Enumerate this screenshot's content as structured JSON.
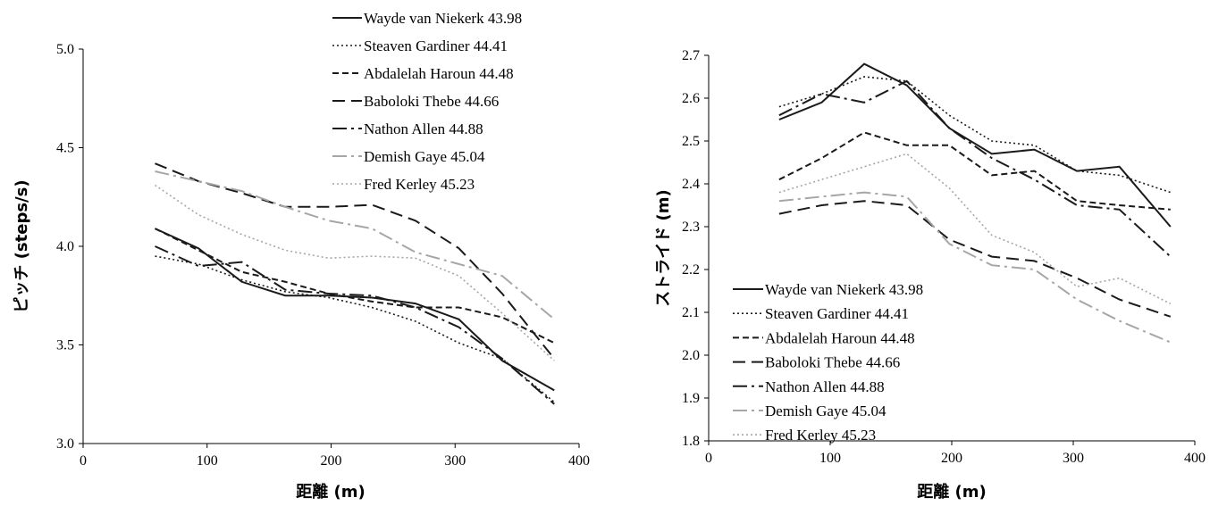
{
  "chart_data": [
    {
      "type": "line",
      "xlabel": "距離 (m)",
      "ylabel": "ピッチ (steps/s)",
      "xlim": [
        0,
        400
      ],
      "ylim": [
        3.0,
        5.0
      ],
      "xticks": [
        "0",
        "100",
        "200",
        "300",
        "400"
      ],
      "yticks": [
        "3.0",
        "3.5",
        "4.0",
        "4.5",
        "5.0"
      ],
      "grid": false,
      "legend_position": "top-right",
      "x": [
        58,
        93,
        128,
        163,
        198,
        233,
        268,
        303,
        338,
        380
      ],
      "series": [
        {
          "name": "Wayde van Niekerk 43.98",
          "style": "solid",
          "color": "#1a1a1a",
          "values": [
            4.09,
            3.99,
            3.82,
            3.75,
            3.75,
            3.74,
            3.71,
            3.63,
            3.42,
            3.27
          ]
        },
        {
          "name": "Steaven Gardiner 44.41",
          "style": "dotted",
          "color": "#1a1a1a",
          "values": [
            3.95,
            3.91,
            3.83,
            3.77,
            3.74,
            3.69,
            3.62,
            3.51,
            3.43,
            3.21
          ]
        },
        {
          "name": "Abdalelah Haroun 44.48",
          "style": "dashed",
          "color": "#1a1a1a",
          "values": [
            4.09,
            3.98,
            3.87,
            3.82,
            3.76,
            3.72,
            3.69,
            3.69,
            3.64,
            3.51
          ]
        },
        {
          "name": "Baboloki Thebe 44.66",
          "style": "longdash",
          "color": "#1a1a1a",
          "values": [
            4.42,
            4.33,
            4.27,
            4.2,
            4.2,
            4.21,
            4.13,
            3.99,
            3.76,
            3.43
          ]
        },
        {
          "name": "Nathon Allen 44.88",
          "style": "dashdot",
          "color": "#1a1a1a",
          "values": [
            4.0,
            3.9,
            3.92,
            3.78,
            3.76,
            3.75,
            3.69,
            3.59,
            3.43,
            3.2
          ]
        },
        {
          "name": "Demish Gaye 45.04",
          "style": "dashdot",
          "color": "#a6a6a6",
          "values": [
            4.38,
            4.33,
            4.28,
            4.2,
            4.13,
            4.09,
            3.97,
            3.91,
            3.85,
            3.63
          ]
        },
        {
          "name": "Fred Kerley 45.23",
          "style": "dotted",
          "color": "#a6a6a6",
          "values": [
            4.31,
            4.16,
            4.06,
            3.98,
            3.94,
            3.95,
            3.94,
            3.85,
            3.66,
            3.42
          ]
        }
      ]
    },
    {
      "type": "line",
      "xlabel": "距離 (m)",
      "ylabel": "ストライド (m)",
      "xlim": [
        0,
        400
      ],
      "ylim": [
        1.8,
        2.7
      ],
      "xticks": [
        "0",
        "100",
        "200",
        "300",
        "400"
      ],
      "yticks": [
        "1.8",
        "1.9",
        "2.0",
        "2.1",
        "2.2",
        "2.3",
        "2.4",
        "2.5",
        "2.6",
        "2.7"
      ],
      "grid": false,
      "legend_position": "bottom-left",
      "x": [
        58,
        93,
        128,
        163,
        198,
        233,
        268,
        303,
        338,
        380
      ],
      "series": [
        {
          "name": "Wayde van Niekerk 43.98",
          "style": "solid",
          "color": "#1a1a1a",
          "values": [
            2.55,
            2.59,
            2.68,
            2.63,
            2.53,
            2.47,
            2.48,
            2.43,
            2.44,
            2.3
          ]
        },
        {
          "name": "Steaven Gardiner 44.41",
          "style": "dotted",
          "color": "#1a1a1a",
          "values": [
            2.58,
            2.61,
            2.65,
            2.64,
            2.56,
            2.5,
            2.49,
            2.43,
            2.42,
            2.38
          ]
        },
        {
          "name": "Abdalelah Haroun 44.48",
          "style": "dashed",
          "color": "#1a1a1a",
          "values": [
            2.41,
            2.46,
            2.52,
            2.49,
            2.49,
            2.42,
            2.43,
            2.36,
            2.35,
            2.34
          ]
        },
        {
          "name": "Baboloki Thebe 44.66",
          "style": "longdash",
          "color": "#1a1a1a",
          "values": [
            2.33,
            2.35,
            2.36,
            2.35,
            2.27,
            2.23,
            2.22,
            2.18,
            2.13,
            2.09
          ]
        },
        {
          "name": "Nathon Allen 44.88",
          "style": "dashdot",
          "color": "#1a1a1a",
          "values": [
            2.56,
            2.61,
            2.59,
            2.64,
            2.53,
            2.46,
            2.41,
            2.35,
            2.34,
            2.23
          ]
        },
        {
          "name": "Demish Gaye 45.04",
          "style": "dashdot",
          "color": "#a6a6a6",
          "values": [
            2.36,
            2.37,
            2.38,
            2.37,
            2.26,
            2.21,
            2.2,
            2.13,
            2.08,
            2.03
          ]
        },
        {
          "name": "Fred Kerley 45.23",
          "style": "dotted",
          "color": "#a6a6a6",
          "values": [
            2.38,
            2.41,
            2.44,
            2.47,
            2.39,
            2.28,
            2.24,
            2.16,
            2.18,
            2.12
          ]
        }
      ]
    }
  ]
}
